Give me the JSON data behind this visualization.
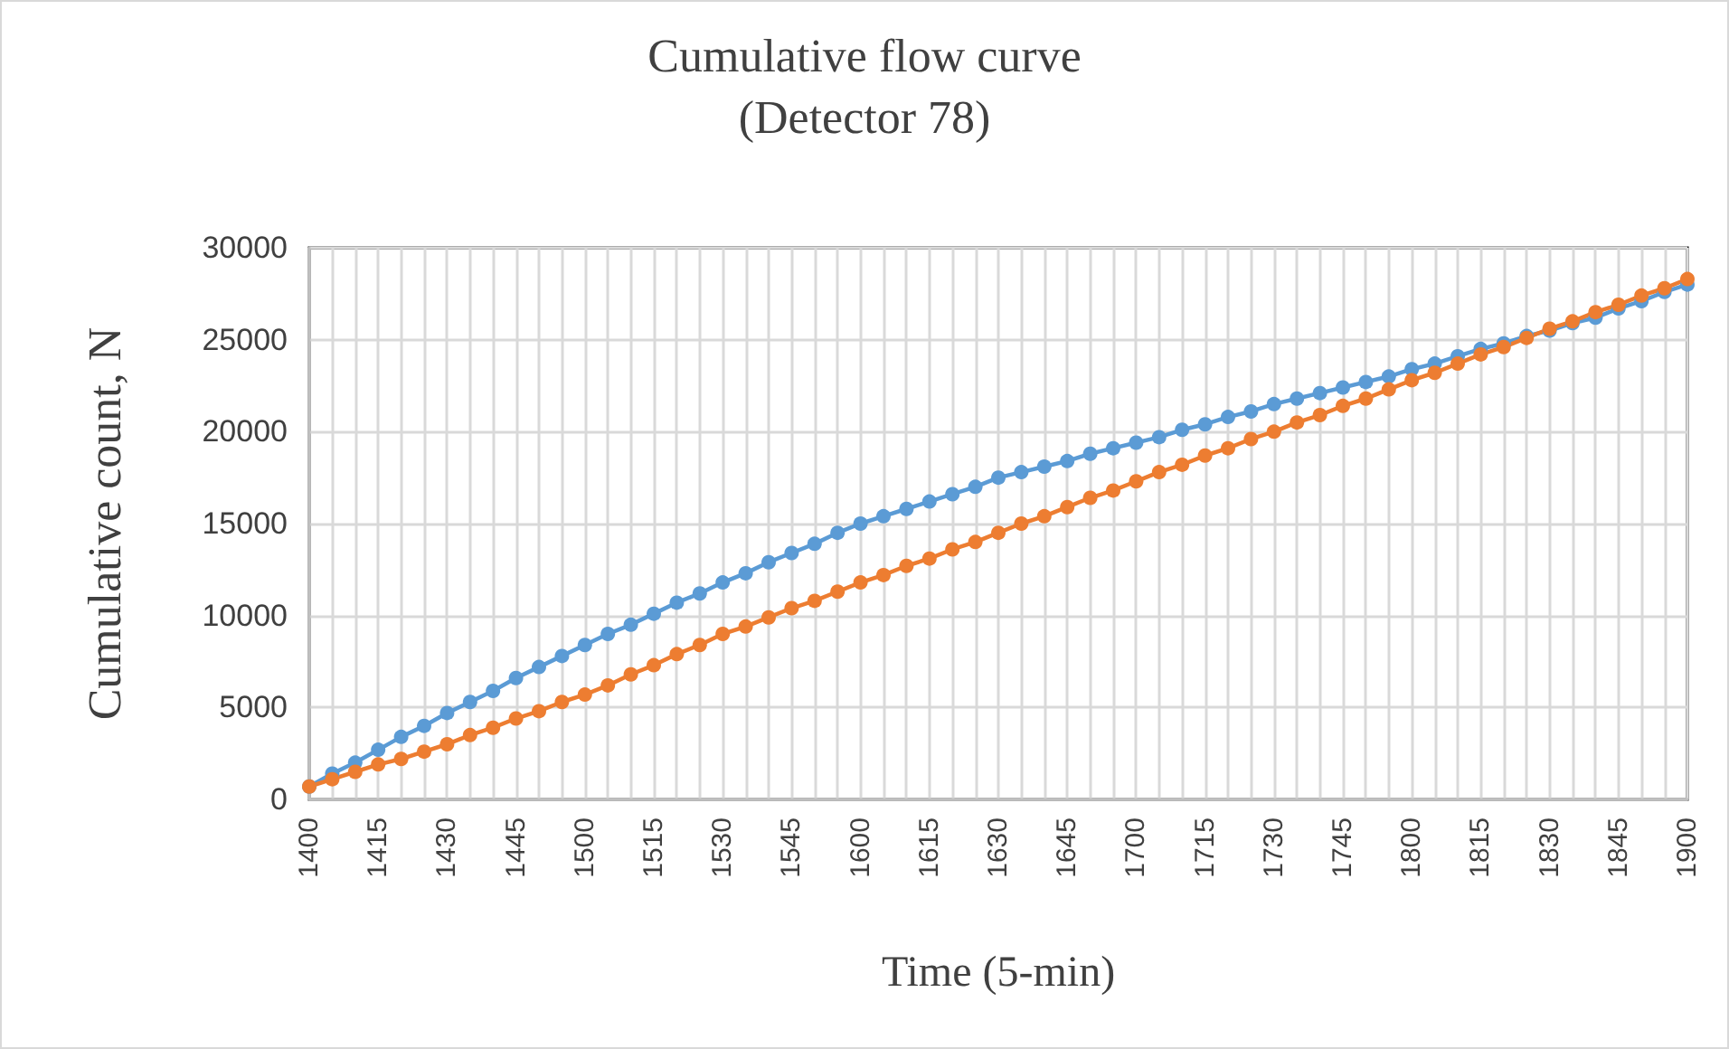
{
  "chart_data": {
    "type": "line",
    "title": "Cumulative flow curve\n(Detector 78)",
    "xlabel": "Time (5-min)",
    "ylabel": "Cumulative count, N",
    "categories": [
      "1400",
      null,
      null,
      "1415",
      null,
      null,
      "1430",
      null,
      null,
      "1445",
      null,
      null,
      "1500",
      null,
      null,
      "1515",
      null,
      null,
      "1530",
      null,
      null,
      "1545",
      null,
      null,
      "1600",
      null,
      null,
      "1615",
      null,
      null,
      "1630",
      null,
      null,
      "1645",
      null,
      null,
      "1700",
      null,
      null,
      "1715",
      null,
      null,
      "1730",
      null,
      null,
      "1745",
      null,
      null,
      "1800",
      null,
      null,
      "1815",
      null,
      null,
      "1830",
      null,
      null,
      "1845",
      null,
      null,
      "1900"
    ],
    "series": [
      {
        "color": "#5b9bd5",
        "values": [
          700,
          1400,
          2000,
          2700,
          3400,
          4000,
          4700,
          5300,
          5900,
          6600,
          7200,
          7800,
          8400,
          9000,
          9500,
          10100,
          10700,
          11200,
          11800,
          12300,
          12900,
          13400,
          13900,
          14500,
          15000,
          15400,
          15800,
          16200,
          16600,
          17000,
          17500,
          17800,
          18100,
          18400,
          18800,
          19100,
          19400,
          19700,
          20100,
          20400,
          20800,
          21100,
          21500,
          21800,
          22100,
          22400,
          22700,
          23000,
          23400,
          23700,
          24100,
          24500,
          24800,
          25200,
          25500,
          25900,
          26200,
          26700,
          27100,
          27600,
          28000
        ]
      },
      {
        "color": "#ed7d31",
        "values": [
          700,
          1100,
          1500,
          1900,
          2200,
          2600,
          3000,
          3500,
          3900,
          4400,
          4800,
          5300,
          5700,
          6200,
          6800,
          7300,
          7900,
          8400,
          9000,
          9400,
          9900,
          10400,
          10800,
          11300,
          11800,
          12200,
          12700,
          13100,
          13600,
          14000,
          14500,
          15000,
          15400,
          15900,
          16400,
          16800,
          17300,
          17800,
          18200,
          18700,
          19100,
          19600,
          20000,
          20500,
          20900,
          21400,
          21800,
          22300,
          22800,
          23200,
          23700,
          24200,
          24600,
          25100,
          25600,
          26000,
          26500,
          26900,
          27400,
          27800,
          28300
        ]
      }
    ],
    "ylim": [
      0,
      30000
    ],
    "yticks": [
      0,
      5000,
      10000,
      15000,
      20000,
      25000,
      30000
    ],
    "grid": true,
    "marker": "circle",
    "line_style": "solid"
  }
}
